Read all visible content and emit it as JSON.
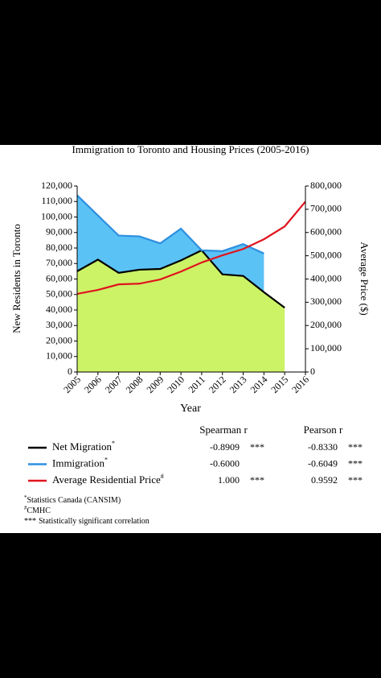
{
  "chart_data": {
    "type": "area-line",
    "title": "Immigration to Toronto and Housing Prices (2005-2016)",
    "x_label": "Year",
    "y_label": "New Residents in Toronto",
    "y2_label": "Average Price ($)",
    "categories": [
      "2005",
      "2006",
      "2007",
      "2008",
      "2009",
      "2010",
      "2011",
      "2012",
      "2013",
      "2014",
      "2015",
      "2016"
    ],
    "series": [
      {
        "name": "Net Migration",
        "color": "#000000",
        "fill": "#ccf266",
        "values": [
          65000,
          72500,
          64000,
          66000,
          66500,
          72000,
          78500,
          63000,
          62000,
          51500,
          41500,
          null
        ]
      },
      {
        "name": "Immigration",
        "color": "#2e8fe0",
        "fill": "#5bc2f5",
        "values": [
          114000,
          101000,
          88000,
          87500,
          83000,
          92500,
          78500,
          78000,
          82500,
          76500,
          null,
          null
        ]
      },
      {
        "name": "Average Residential Price",
        "color": "#e0141e",
        "axis": "y2",
        "values": [
          336000,
          353000,
          377000,
          380000,
          398000,
          432000,
          471000,
          502000,
          529000,
          571000,
          626000,
          733000
        ]
      }
    ],
    "ylim": [
      0,
      120000
    ],
    "yticks": [
      0,
      {
        "value": 10000,
        "label": "10,000"
      },
      {
        "value": 20000,
        "label": "20,000"
      },
      {
        "value": 30000,
        "label": "30,000"
      },
      {
        "value": 40000,
        "label": "40,000"
      },
      {
        "value": 50000,
        "label": "50,000"
      },
      {
        "value": 60000,
        "label": "60,000"
      },
      {
        "value": 70000,
        "label": "70,000"
      },
      {
        "value": 80000,
        "label": "80,000"
      },
      {
        "value": 90000,
        "label": "90,000"
      },
      {
        "value": 100000,
        "label": "100,000"
      },
      {
        "value": 110000,
        "label": "110,000"
      },
      {
        "value": 120000,
        "label": "120,000"
      }
    ],
    "y2lim": [
      0,
      800000
    ],
    "y2ticks": [
      0,
      {
        "value": 100000,
        "label": "100,000"
      },
      {
        "value": 200000,
        "label": "200,000"
      },
      {
        "value": 300000,
        "label": "300,000"
      },
      {
        "value": 400000,
        "label": "400,000"
      },
      {
        "value": 500000,
        "label": "500,000"
      },
      {
        "value": 600000,
        "label": "600,000"
      },
      {
        "value": 700000,
        "label": "700,000"
      },
      {
        "value": 800000,
        "label": "800,000"
      }
    ]
  },
  "stats_table": {
    "headers": [
      "Spearman r",
      "Pearson r"
    ],
    "rows": [
      {
        "marker": "*",
        "spearman": "-0.8909",
        "spearman_sig": "***",
        "pearson": "-0.8330",
        "pearson_sig": "***"
      },
      {
        "marker": "*",
        "spearman": "-0.6000",
        "pearson": "-0.6049",
        "pearson_sig": "***"
      },
      {
        "marker": "#",
        "spearman": "1.000",
        "spearman_sig": "***",
        "pearson": "0.9592",
        "pearson_sig": "***"
      }
    ]
  },
  "footnotes": [
    {
      "marker": "*",
      "text": "Statistics Canada (CANSIM)"
    },
    {
      "marker": "#",
      "text": "CMHC"
    },
    {
      "marker": "***",
      "text": "Statistically significant correlation"
    }
  ]
}
